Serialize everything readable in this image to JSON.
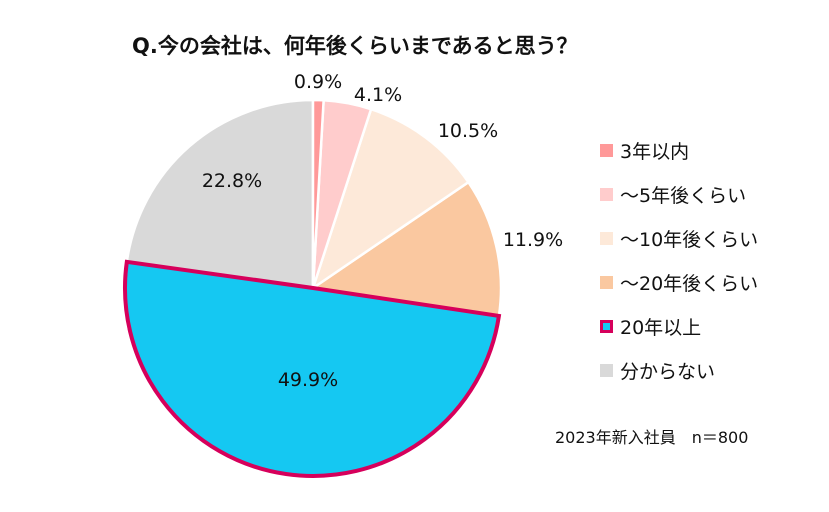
{
  "chart_data": {
    "type": "pie",
    "title": "Q.今の会社は、何年後くらいまであると思う？",
    "categories": [
      "3年以内",
      "～5年後くらい",
      "～10年後くらい",
      "～20年後くらい",
      "20年以上",
      "分からない"
    ],
    "values": [
      0.9,
      4.1,
      10.5,
      11.9,
      49.9,
      22.8
    ],
    "labels": [
      "0.9%",
      "4.1%",
      "10.5%",
      "11.9%",
      "49.9%",
      "22.8%"
    ],
    "colors": [
      "#FF9999",
      "#FFCCCC",
      "#FDE9D9",
      "#FAC8A0",
      "#15C8F2",
      "#D9D9D9"
    ],
    "highlight": {
      "index": 4,
      "border_color": "#D6005B"
    },
    "legend_position": "right",
    "start": "top",
    "direction": "clockwise"
  },
  "note": "2023年新入社員　n＝800"
}
